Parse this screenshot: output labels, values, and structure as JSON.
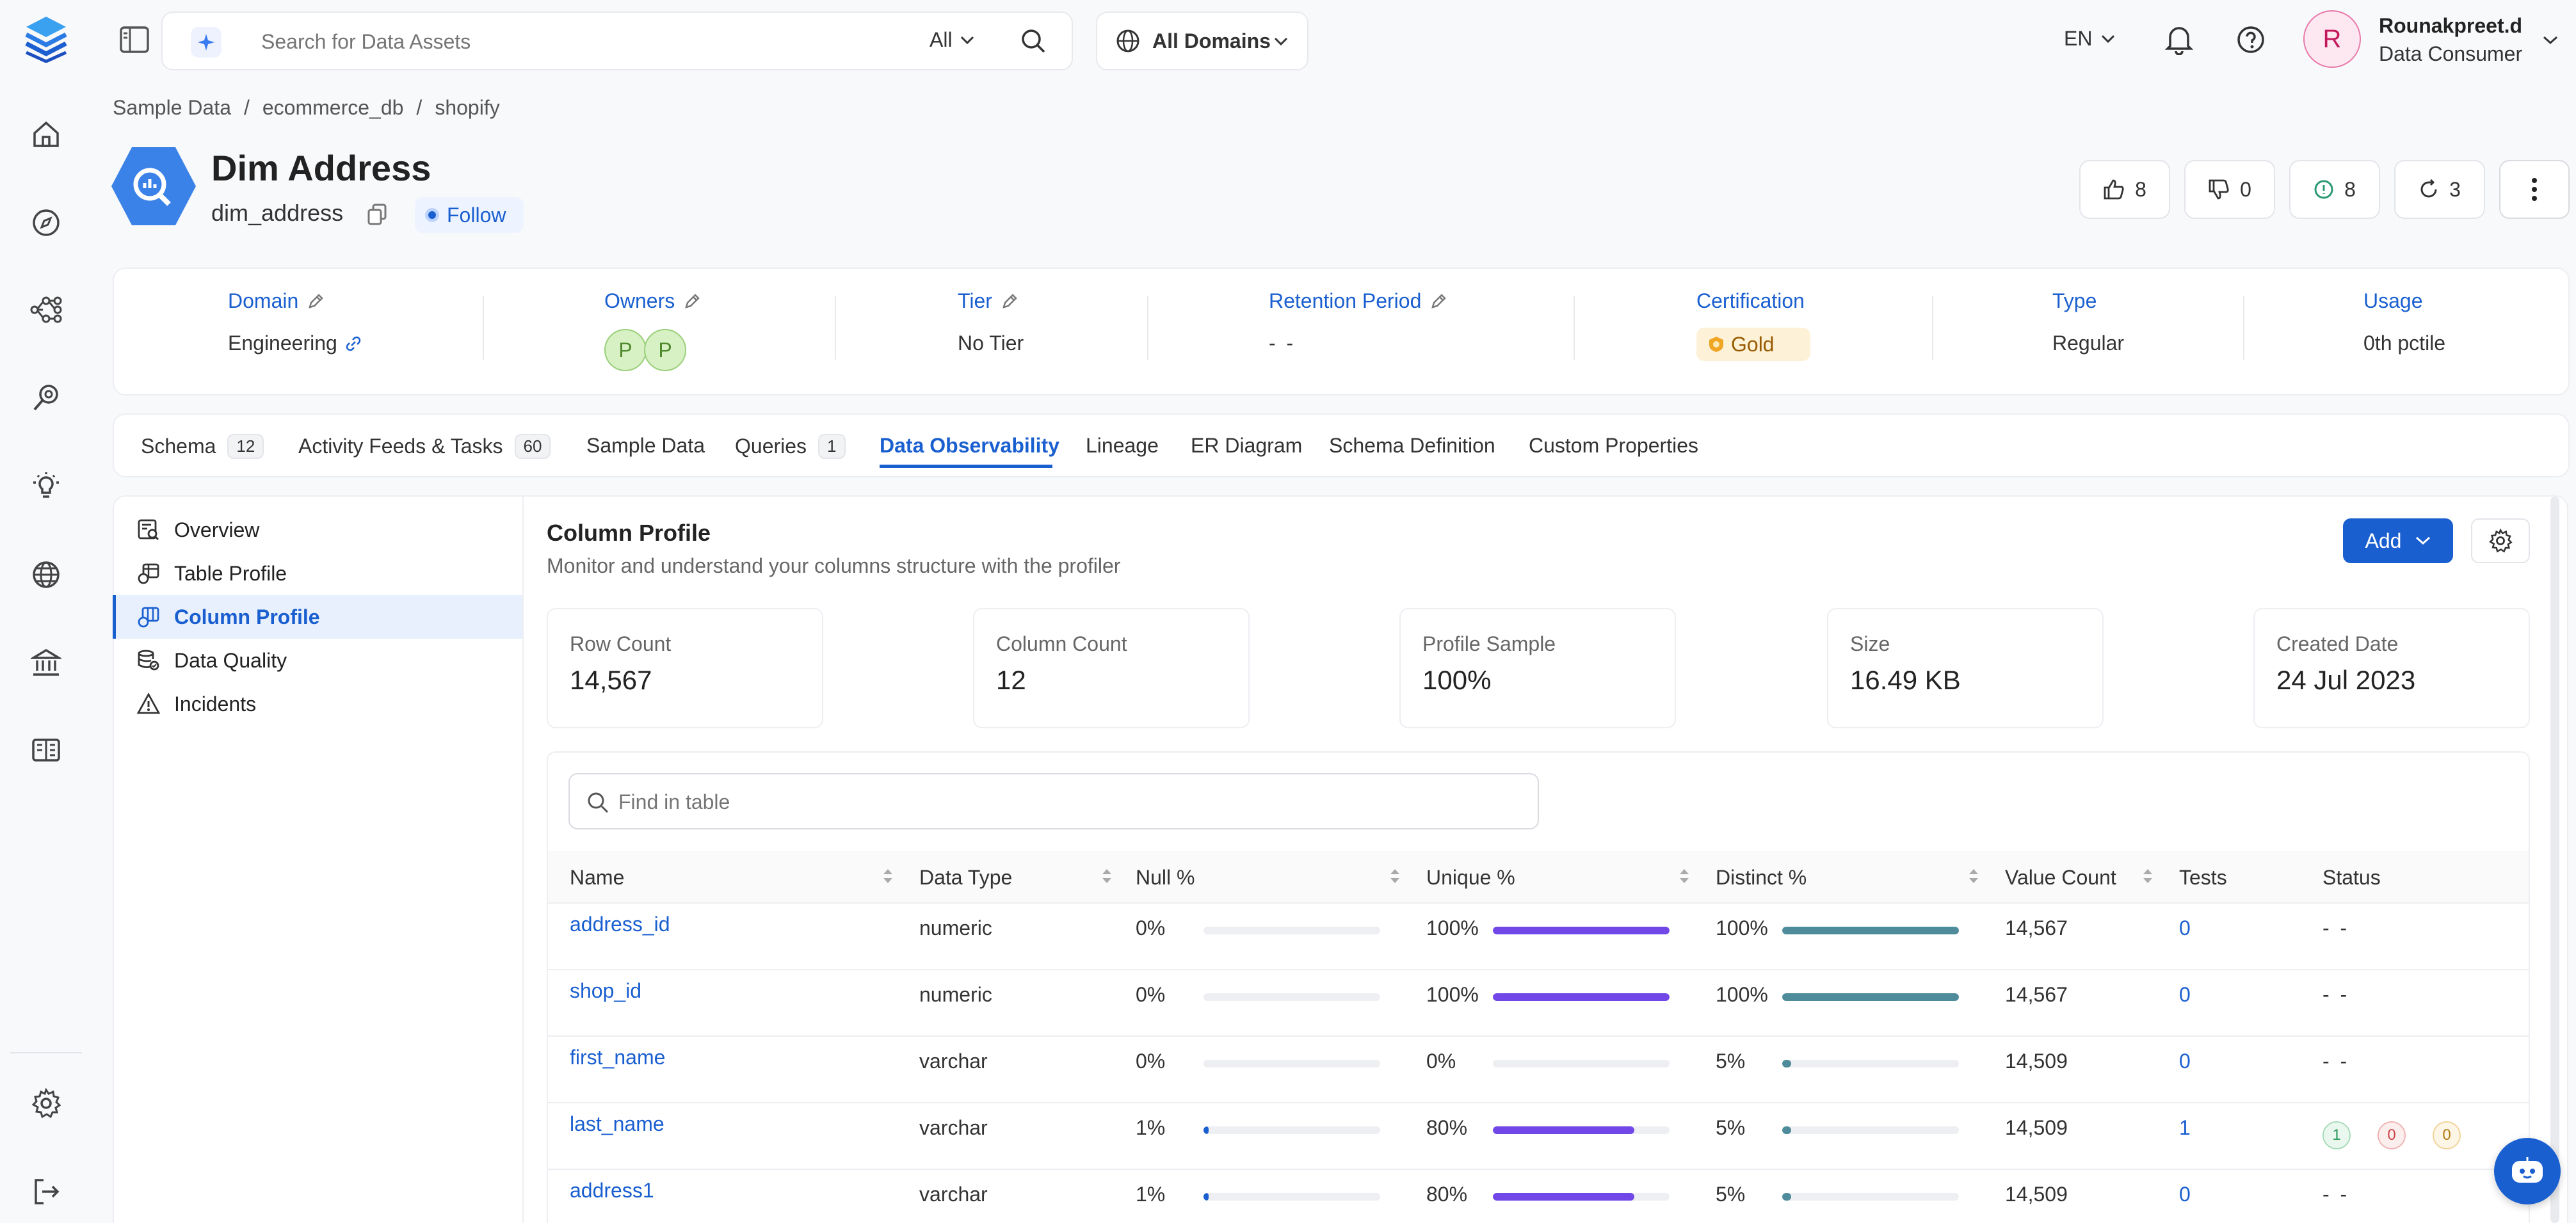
{
  "search": {
    "placeholder": "Search for Data Assets",
    "filter": "All"
  },
  "domains": {
    "label": "All Domains"
  },
  "lang": "EN",
  "user": {
    "initial": "R",
    "name": "Rounakpreet.d",
    "role": "Data Consumer"
  },
  "breadcrumb": [
    "Sample Data",
    "/",
    "ecommerce_db",
    "/",
    "shopify"
  ],
  "entity": {
    "title": "Dim Address",
    "fqn": "dim_address",
    "follow": "Follow"
  },
  "counters": {
    "likes": "8",
    "dislikes": "0",
    "votes": "8",
    "versions": "3"
  },
  "props": {
    "domain": {
      "label": "Domain",
      "value": "Engineering"
    },
    "owners": {
      "label": "Owners",
      "initials": [
        "P",
        "P"
      ]
    },
    "tier": {
      "label": "Tier",
      "value": "No Tier"
    },
    "retention": {
      "label": "Retention Period",
      "value": "- -"
    },
    "certification": {
      "label": "Certification",
      "value": "Gold"
    },
    "type": {
      "label": "Type",
      "value": "Regular"
    },
    "usage": {
      "label": "Usage",
      "value": "0th pctile"
    }
  },
  "tabs": [
    {
      "label": "Schema",
      "count": "12"
    },
    {
      "label": "Activity Feeds & Tasks",
      "count": "60"
    },
    {
      "label": "Sample Data"
    },
    {
      "label": "Queries",
      "count": "1"
    },
    {
      "label": "Data Observability",
      "active": true
    },
    {
      "label": "Lineage"
    },
    {
      "label": "ER Diagram"
    },
    {
      "label": "Schema Definition"
    },
    {
      "label": "Custom Properties"
    }
  ],
  "sidemenu": [
    "Overview",
    "Table Profile",
    "Column Profile",
    "Data Quality",
    "Incidents"
  ],
  "profile": {
    "title": "Column Profile",
    "subtitle": "Monitor and understand your columns structure with the profiler",
    "add_label": "Add",
    "find_placeholder": "Find in table"
  },
  "stats": [
    {
      "label": "Row Count",
      "value": "14,567"
    },
    {
      "label": "Column Count",
      "value": "12"
    },
    {
      "label": "Profile Sample",
      "value": "100%"
    },
    {
      "label": "Size",
      "value": "16.49 KB"
    },
    {
      "label": "Created Date",
      "value": "24 Jul 2023"
    }
  ],
  "columns": [
    "Name",
    "Data Type",
    "Null %",
    "Unique %",
    "Distinct %",
    "Value Count",
    "Tests",
    "Status"
  ],
  "rows": [
    {
      "name": "address_id",
      "type": "numeric",
      "null": "0%",
      "null_v": 0,
      "unique": "100%",
      "unique_v": 100,
      "distinct": "100%",
      "distinct_v": 100,
      "count": "14,567",
      "tests": "0",
      "status": "- -"
    },
    {
      "name": "shop_id",
      "type": "numeric",
      "null": "0%",
      "null_v": 0,
      "unique": "100%",
      "unique_v": 100,
      "distinct": "100%",
      "distinct_v": 100,
      "count": "14,567",
      "tests": "0",
      "status": "- -"
    },
    {
      "name": "first_name",
      "type": "varchar",
      "null": "0%",
      "null_v": 0,
      "unique": "0%",
      "unique_v": 0,
      "distinct": "5%",
      "distinct_v": 5,
      "count": "14,509",
      "tests": "0",
      "status": "- -"
    },
    {
      "name": "last_name",
      "type": "varchar",
      "null": "1%",
      "null_v": 1,
      "unique": "80%",
      "unique_v": 80,
      "distinct": "5%",
      "distinct_v": 5,
      "count": "14,509",
      "tests": "1",
      "status_badges": [
        "1",
        "0",
        "0"
      ]
    },
    {
      "name": "address1",
      "type": "varchar",
      "null": "1%",
      "null_v": 1,
      "unique": "80%",
      "unique_v": 80,
      "distinct": "5%",
      "distinct_v": 5,
      "count": "14,509",
      "tests": "0",
      "status": "- -"
    }
  ],
  "colors": {
    "primary": "#1a5fd0",
    "unique_bar": "#7147e8",
    "distinct_bar": "#4e8c9c",
    "gold": "#f0a524"
  }
}
